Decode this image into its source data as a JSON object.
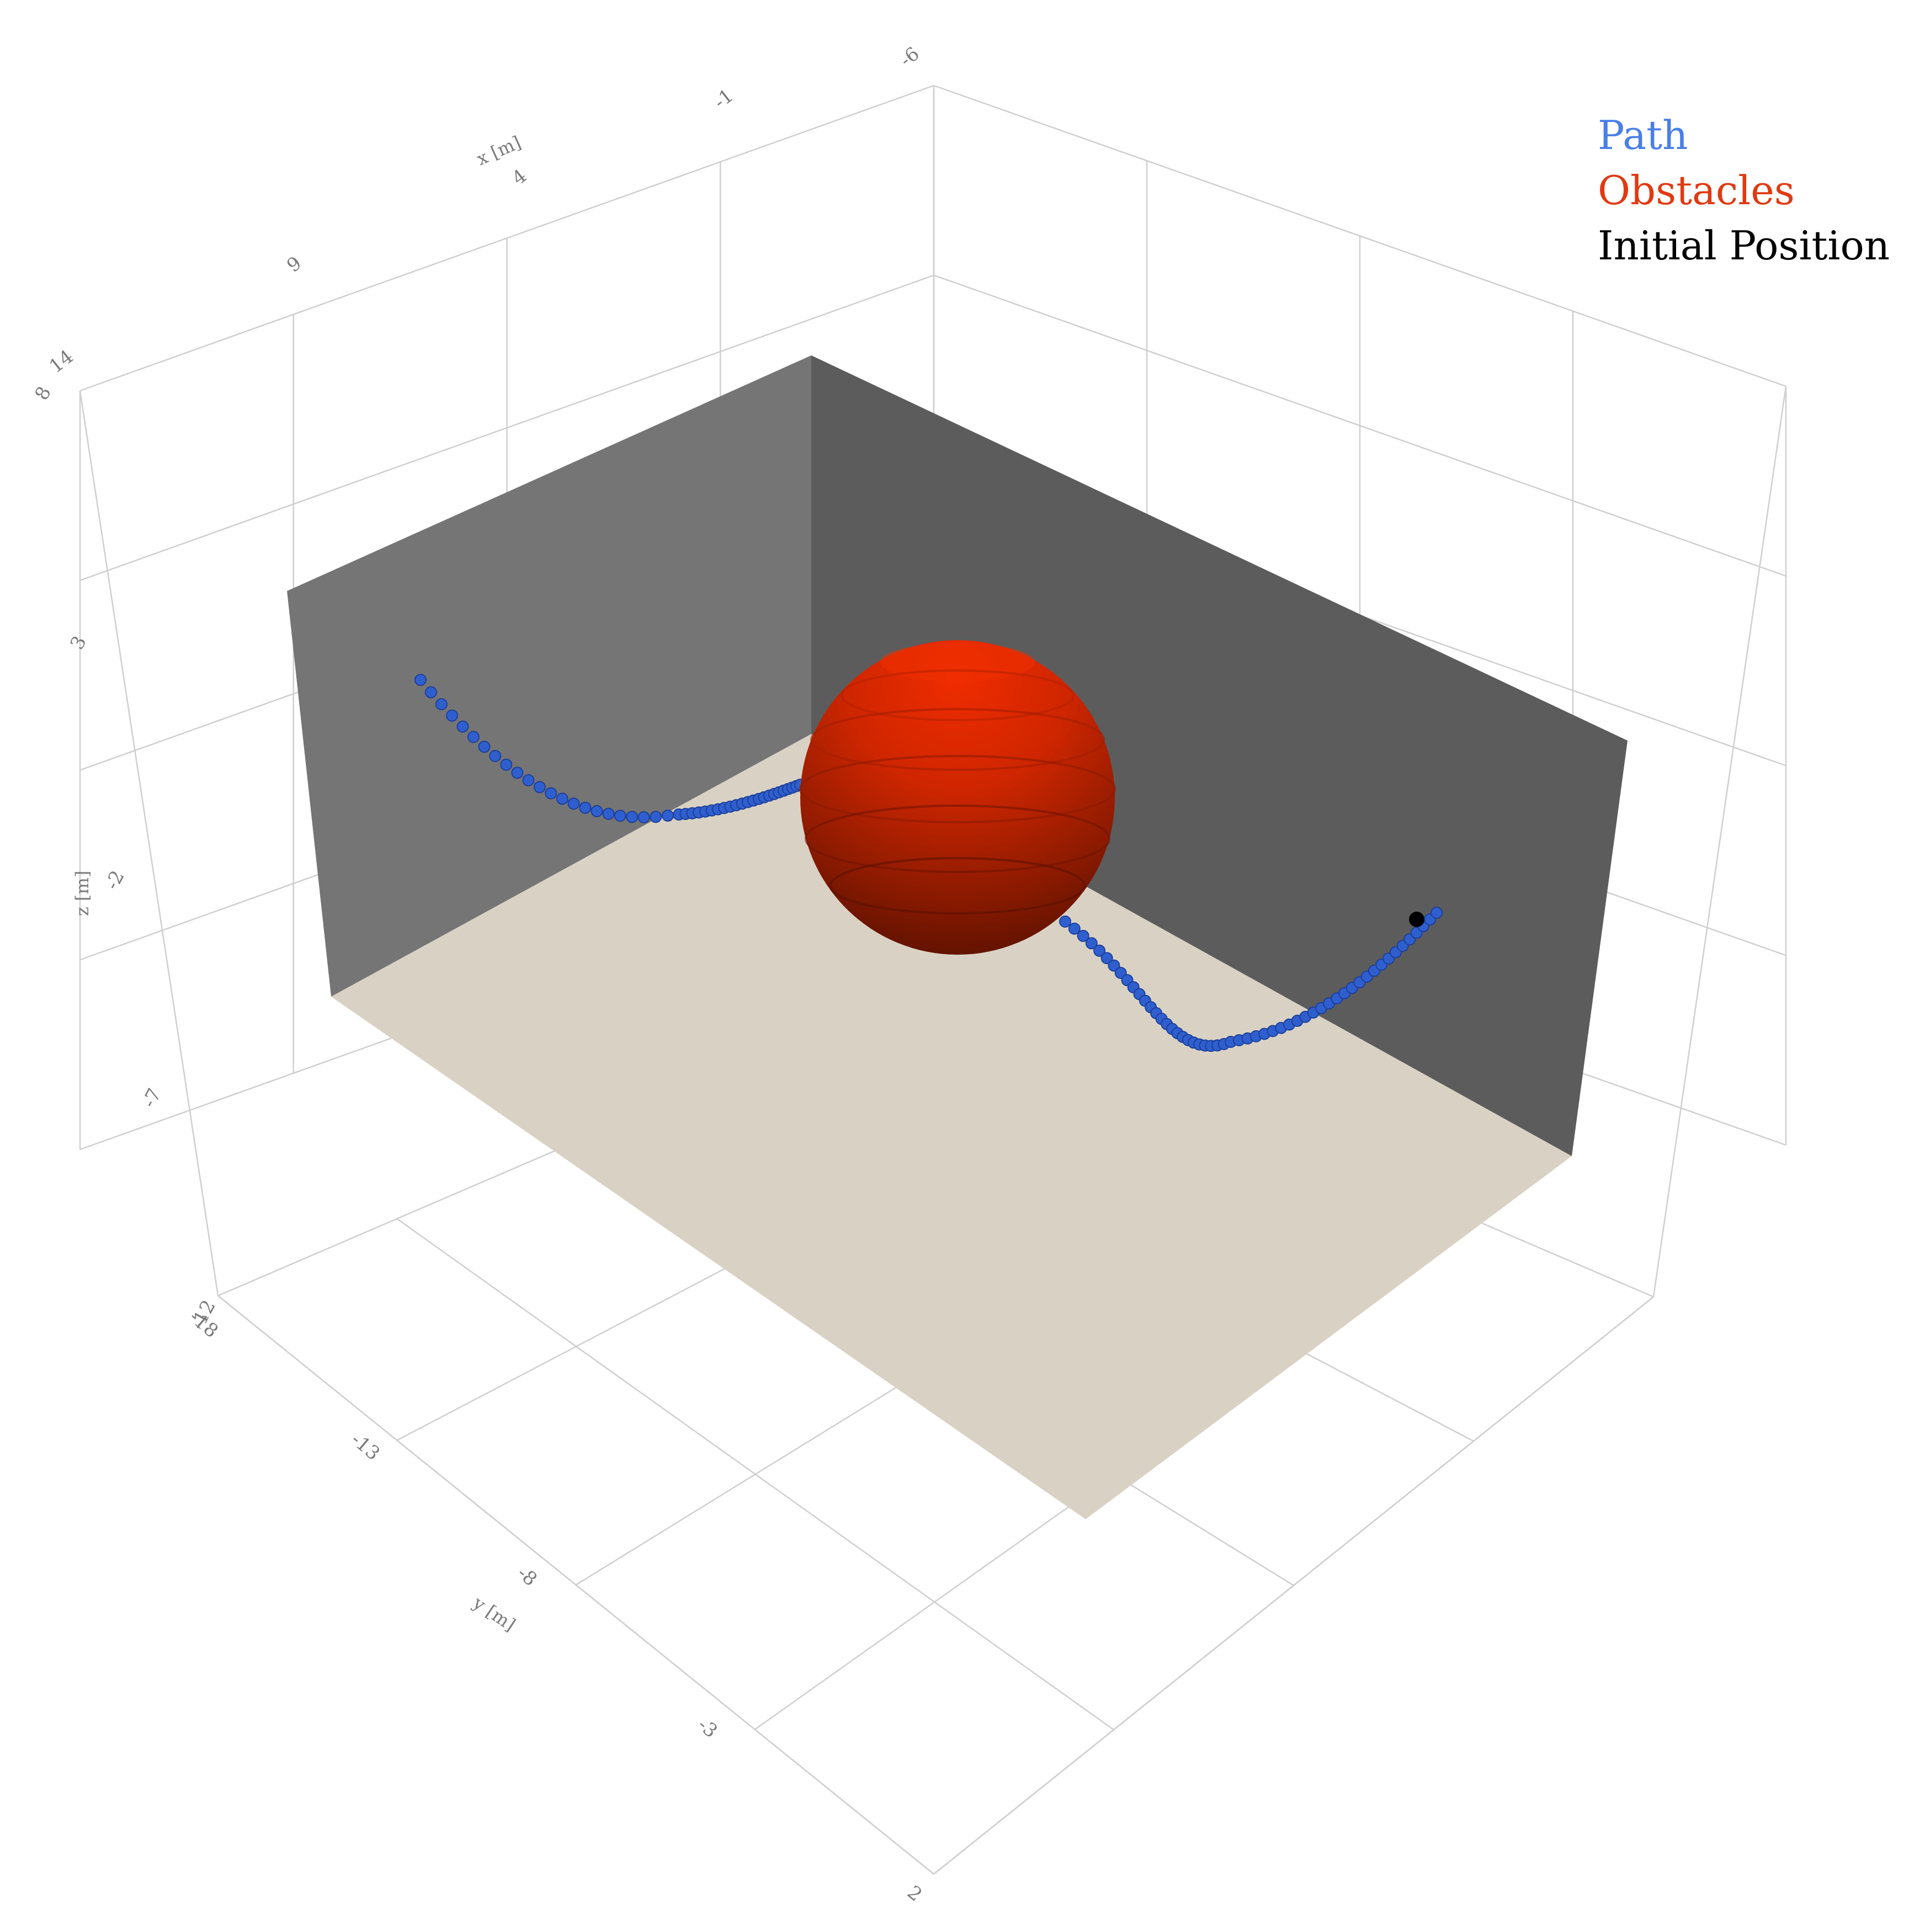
{
  "chart_data": {
    "type": "scatter3d",
    "legend": {
      "placement": "top-right",
      "entries": [
        {
          "label": "Path",
          "color": "#4a7fe6"
        },
        {
          "label": "Obstacles",
          "color": "#e03a12"
        },
        {
          "label": "Initial Position",
          "color": "#000000"
        }
      ]
    },
    "axes": {
      "x": {
        "label": "x [m]",
        "ticks": [
          "-6",
          "-1",
          "4",
          "9",
          "14"
        ],
        "range": [
          -6,
          14
        ]
      },
      "y": {
        "label": "y [m]",
        "ticks": [
          "-18",
          "-13",
          "-8",
          "-3",
          "2"
        ],
        "range": [
          -18,
          2
        ]
      },
      "z": {
        "label": "z [m]",
        "ticks": [
          "-12",
          "-7",
          "-2",
          "3",
          "8"
        ],
        "range": [
          -12,
          8
        ]
      }
    },
    "grid": true,
    "colors": {
      "path": "#2f5fcf",
      "obstacle": "#e03a12",
      "initial": "#000000",
      "floor": "#d9d2c4",
      "wall_left": "#757575",
      "wall_right": "#5c5c5c",
      "grid": "#cfcfcf"
    }
  }
}
